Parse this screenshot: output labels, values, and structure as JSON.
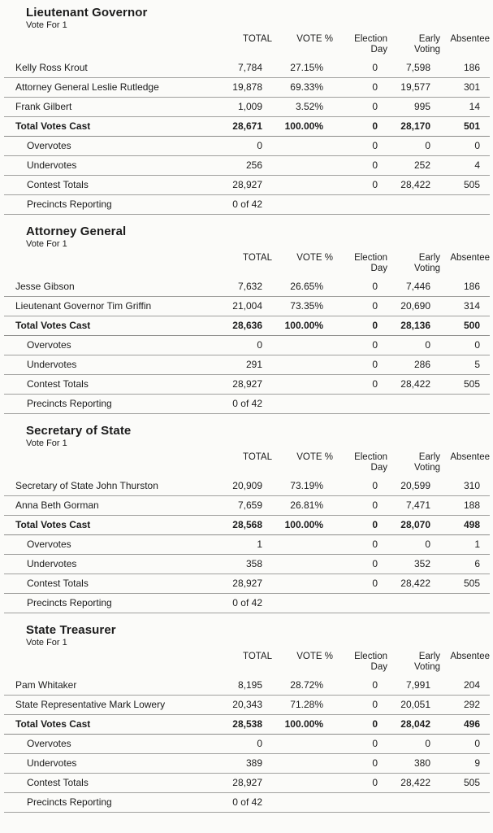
{
  "report": {
    "columns": {
      "total": "TOTAL",
      "vote_pct": "VOTE %",
      "election_day_line1": "Election",
      "election_day_line2": "Day",
      "early_voting_line1": "Early",
      "early_voting_line2": "Voting",
      "absentee": "Absentee"
    },
    "contests": [
      {
        "title": "Lieutenant Governor",
        "vote_for": "Vote For 1",
        "rows": [
          {
            "type": "candidate",
            "label": "Kelly Ross Krout",
            "values": [
              "7,784",
              "27.15%",
              "0",
              "7,598",
              "186"
            ]
          },
          {
            "type": "candidate",
            "label": "Attorney General Leslie Rutledge",
            "values": [
              "19,878",
              "69.33%",
              "0",
              "19,577",
              "301"
            ]
          },
          {
            "type": "candidate",
            "label": "Frank Gilbert",
            "values": [
              "1,009",
              "3.52%",
              "0",
              "995",
              "14"
            ]
          },
          {
            "type": "total",
            "label": "Total Votes Cast",
            "values": [
              "28,671",
              "100.00%",
              "0",
              "28,170",
              "501"
            ]
          },
          {
            "type": "stat",
            "label": "Overvotes",
            "values": [
              "0",
              "",
              "0",
              "0",
              "0"
            ]
          },
          {
            "type": "stat",
            "label": "Undervotes",
            "values": [
              "256",
              "",
              "0",
              "252",
              "4"
            ]
          },
          {
            "type": "stat",
            "label": "Contest Totals",
            "values": [
              "28,927",
              "",
              "0",
              "28,422",
              "505"
            ]
          },
          {
            "type": "stat",
            "label": "Precincts Reporting",
            "values": [
              "0 of 42",
              "",
              "",
              "",
              ""
            ]
          }
        ]
      },
      {
        "title": "Attorney General",
        "vote_for": "Vote For 1",
        "rows": [
          {
            "type": "candidate",
            "label": "Jesse Gibson",
            "values": [
              "7,632",
              "26.65%",
              "0",
              "7,446",
              "186"
            ]
          },
          {
            "type": "candidate",
            "label": "Lieutenant Governor Tim Griffin",
            "values": [
              "21,004",
              "73.35%",
              "0",
              "20,690",
              "314"
            ]
          },
          {
            "type": "total",
            "label": "Total Votes Cast",
            "values": [
              "28,636",
              "100.00%",
              "0",
              "28,136",
              "500"
            ]
          },
          {
            "type": "stat",
            "label": "Overvotes",
            "values": [
              "0",
              "",
              "0",
              "0",
              "0"
            ]
          },
          {
            "type": "stat",
            "label": "Undervotes",
            "values": [
              "291",
              "",
              "0",
              "286",
              "5"
            ]
          },
          {
            "type": "stat",
            "label": "Contest Totals",
            "values": [
              "28,927",
              "",
              "0",
              "28,422",
              "505"
            ]
          },
          {
            "type": "stat",
            "label": "Precincts Reporting",
            "values": [
              "0 of 42",
              "",
              "",
              "",
              ""
            ]
          }
        ]
      },
      {
        "title": "Secretary of State",
        "vote_for": "Vote For 1",
        "rows": [
          {
            "type": "candidate",
            "label": "Secretary of State John Thurston",
            "values": [
              "20,909",
              "73.19%",
              "0",
              "20,599",
              "310"
            ]
          },
          {
            "type": "candidate",
            "label": "Anna Beth Gorman",
            "values": [
              "7,659",
              "26.81%",
              "0",
              "7,471",
              "188"
            ]
          },
          {
            "type": "total",
            "label": "Total Votes Cast",
            "values": [
              "28,568",
              "100.00%",
              "0",
              "28,070",
              "498"
            ]
          },
          {
            "type": "stat",
            "label": "Overvotes",
            "values": [
              "1",
              "",
              "0",
              "0",
              "1"
            ]
          },
          {
            "type": "stat",
            "label": "Undervotes",
            "values": [
              "358",
              "",
              "0",
              "352",
              "6"
            ]
          },
          {
            "type": "stat",
            "label": "Contest Totals",
            "values": [
              "28,927",
              "",
              "0",
              "28,422",
              "505"
            ]
          },
          {
            "type": "stat",
            "label": "Precincts Reporting",
            "values": [
              "0 of 42",
              "",
              "",
              "",
              ""
            ]
          }
        ]
      },
      {
        "title": "State Treasurer",
        "vote_for": "Vote For 1",
        "rows": [
          {
            "type": "candidate",
            "label": "Pam Whitaker",
            "values": [
              "8,195",
              "28.72%",
              "0",
              "7,991",
              "204"
            ]
          },
          {
            "type": "candidate",
            "label": "State Representative Mark Lowery",
            "values": [
              "20,343",
              "71.28%",
              "0",
              "20,051",
              "292"
            ]
          },
          {
            "type": "total",
            "label": "Total Votes Cast",
            "values": [
              "28,538",
              "100.00%",
              "0",
              "28,042",
              "496"
            ]
          },
          {
            "type": "stat",
            "label": "Overvotes",
            "values": [
              "0",
              "",
              "0",
              "0",
              "0"
            ]
          },
          {
            "type": "stat",
            "label": "Undervotes",
            "values": [
              "389",
              "",
              "0",
              "380",
              "9"
            ]
          },
          {
            "type": "stat",
            "label": "Contest Totals",
            "values": [
              "28,927",
              "",
              "0",
              "28,422",
              "505"
            ]
          },
          {
            "type": "stat",
            "label": "Precincts Reporting",
            "values": [
              "0 of 42",
              "",
              "",
              "",
              ""
            ]
          }
        ]
      }
    ]
  },
  "colors": {
    "page_background": "#fbfbf9",
    "text": "#1c1c1c",
    "rule": "#a0a09e"
  }
}
